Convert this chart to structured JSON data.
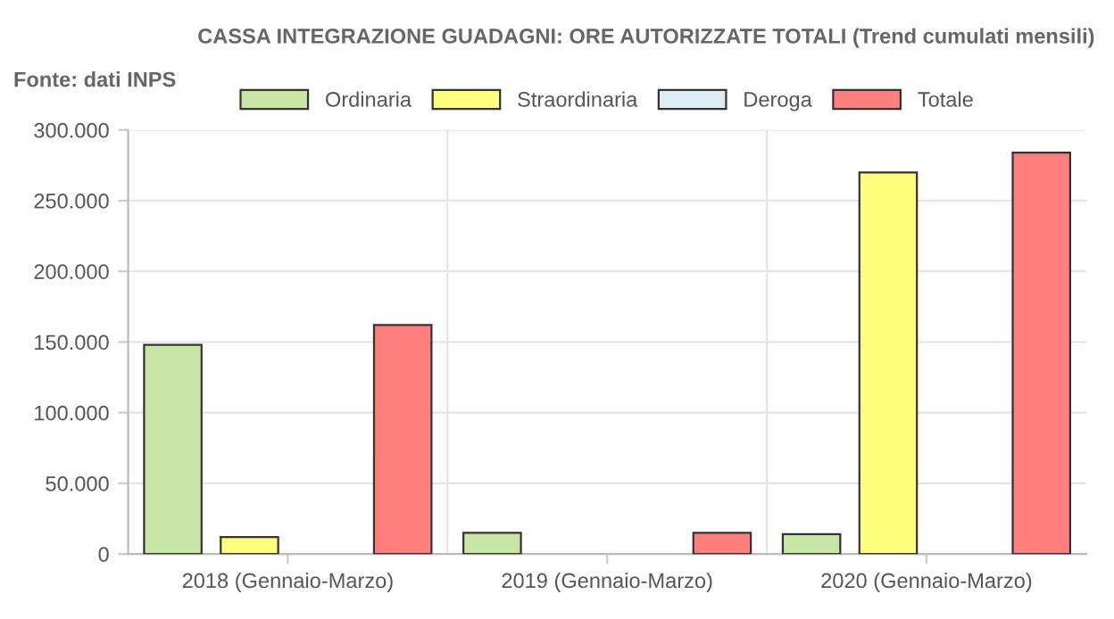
{
  "chart_data": {
    "type": "bar",
    "title": "CASSA INTEGRAZIONE GUADAGNI: ORE AUTORIZZATE TOTALI (Trend cumulati mensili)",
    "annotations": [
      "Fonte: dati INPS"
    ],
    "categories": [
      "2018 (Gennaio-Marzo)",
      "2019 (Gennaio-Marzo)",
      "2020 (Gennaio-Marzo)"
    ],
    "series": [
      {
        "name": "Ordinaria",
        "color": "#c9e5a5",
        "values": [
          148000,
          15000,
          14000
        ]
      },
      {
        "name": "Straordinaria",
        "color": "#ffff80",
        "values": [
          12000,
          null,
          270000
        ]
      },
      {
        "name": "Deroga",
        "color": "#dcedf6",
        "values": [
          null,
          null,
          null
        ]
      },
      {
        "name": "Totale",
        "color": "#ff7f7f",
        "values": [
          162000,
          15000,
          284000
        ]
      }
    ],
    "ylim": [
      0,
      300000
    ],
    "yticks": [
      {
        "value": 0,
        "label": "0"
      },
      {
        "value": 50000,
        "label": "50.000"
      },
      {
        "value": 100000,
        "label": "100.000"
      },
      {
        "value": 150000,
        "label": "150.000"
      },
      {
        "value": 200000,
        "label": "200.000"
      },
      {
        "value": 250000,
        "label": "250.000"
      },
      {
        "value": 300000,
        "label": "300.000"
      }
    ],
    "grid": true,
    "legend": "top"
  }
}
